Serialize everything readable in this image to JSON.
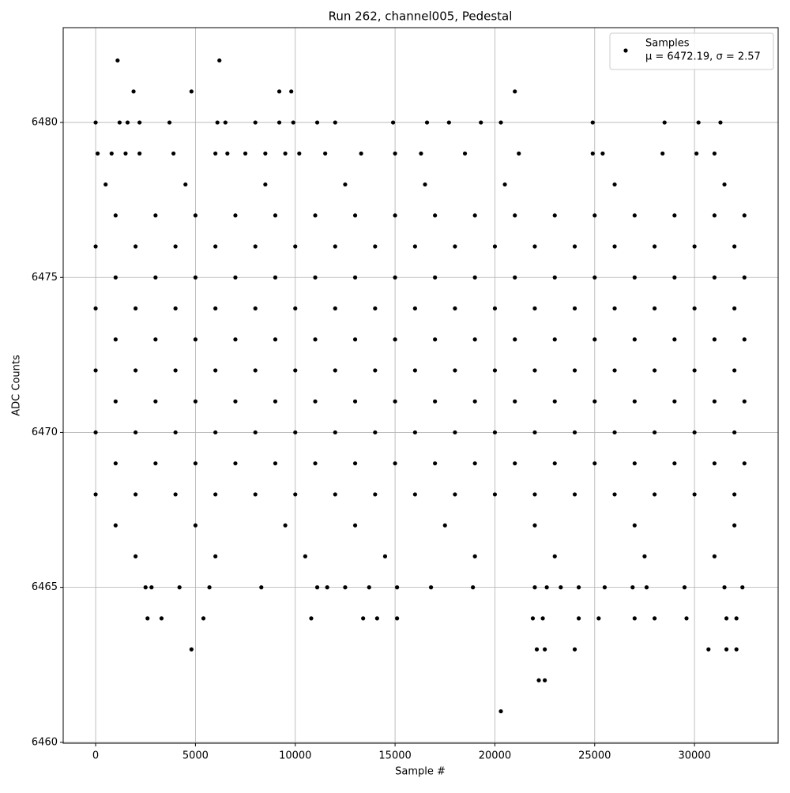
{
  "chart_data": {
    "type": "scatter",
    "title": "Run 262, channel005, Pedestal",
    "xlabel": "Sample #",
    "ylabel": "ADC Counts",
    "legend_stats": "μ = 6472.19, σ = 2.57",
    "x": [
      1100,
      6200,
      1900,
      4800,
      9200,
      9800,
      21000,
      0,
      1200,
      1600,
      2200,
      3700,
      6100,
      6500,
      8000,
      9200,
      9900,
      11100,
      12000,
      14900,
      16600,
      17700,
      19300,
      20300,
      24900,
      28500,
      30200,
      31300,
      100,
      800,
      1500,
      2200,
      3900,
      6000,
      6600,
      7500,
      8500,
      9500,
      10200,
      11500,
      13300,
      15000,
      16300,
      18500,
      21200,
      24900,
      25400,
      28400,
      31000,
      30100,
      500,
      4500,
      8500,
      12500,
      16500,
      20500,
      26000,
      31500,
      1000,
      3000,
      5000,
      7000,
      9000,
      11000,
      13000,
      15000,
      17000,
      19000,
      21000,
      23000,
      25000,
      27000,
      29000,
      31000,
      32500,
      0,
      2000,
      4000,
      6000,
      8000,
      10000,
      12000,
      14000,
      16000,
      18000,
      20000,
      22000,
      24000,
      26000,
      28000,
      30000,
      32000,
      1000,
      3000,
      5000,
      7000,
      9000,
      11000,
      13000,
      15000,
      17000,
      19000,
      21000,
      23000,
      25000,
      27000,
      29000,
      31000,
      32500,
      0,
      2000,
      4000,
      6000,
      8000,
      10000,
      12000,
      14000,
      16000,
      18000,
      20000,
      22000,
      24000,
      26000,
      28000,
      30000,
      32000,
      1000,
      3000,
      5000,
      7000,
      9000,
      11000,
      13000,
      15000,
      17000,
      19000,
      21000,
      23000,
      25000,
      27000,
      29000,
      31000,
      32500,
      0,
      2000,
      4000,
      6000,
      8000,
      10000,
      12000,
      14000,
      16000,
      18000,
      20000,
      22000,
      24000,
      26000,
      28000,
      30000,
      32000,
      1000,
      3000,
      5000,
      7000,
      9000,
      11000,
      13000,
      15000,
      17000,
      19000,
      21000,
      23000,
      25000,
      27000,
      29000,
      31000,
      32500,
      0,
      2000,
      4000,
      6000,
      8000,
      10000,
      12000,
      14000,
      16000,
      18000,
      20000,
      22000,
      24000,
      26000,
      28000,
      30000,
      32000,
      1000,
      3000,
      5000,
      7000,
      9000,
      11000,
      13000,
      15000,
      17000,
      19000,
      21000,
      23000,
      25000,
      27000,
      29000,
      31000,
      32500,
      0,
      2000,
      4000,
      6000,
      8000,
      10000,
      12000,
      14000,
      16000,
      18000,
      20000,
      22000,
      24000,
      26000,
      28000,
      30000,
      32000,
      1000,
      5000,
      9500,
      13000,
      17500,
      22000,
      27000,
      32000,
      2000,
      6000,
      10500,
      14500,
      19000,
      23000,
      27500,
      31000,
      2500,
      2800,
      4200,
      5700,
      8300,
      11100,
      11600,
      12500,
      13700,
      15100,
      16800,
      18900,
      22000,
      22600,
      23300,
      24200,
      25500,
      26900,
      27600,
      29500,
      31500,
      32400,
      2600,
      3300,
      5400,
      10800,
      13400,
      14100,
      15100,
      21900,
      22400,
      24200,
      25200,
      27000,
      28000,
      29600,
      31600,
      32100,
      4800,
      22100,
      22500,
      24000,
      30700,
      31600,
      32100,
      22200,
      22500,
      20300
    ],
    "series": [
      {
        "name": "Samples",
        "color": "#000000",
        "values": [
          6482,
          6482,
          6481,
          6481,
          6481,
          6481,
          6481,
          6480,
          6480,
          6480,
          6480,
          6480,
          6480,
          6480,
          6480,
          6480,
          6480,
          6480,
          6480,
          6480,
          6480,
          6480,
          6480,
          6480,
          6480,
          6480,
          6480,
          6480,
          6479,
          6479,
          6479,
          6479,
          6479,
          6479,
          6479,
          6479,
          6479,
          6479,
          6479,
          6479,
          6479,
          6479,
          6479,
          6479,
          6479,
          6479,
          6479,
          6479,
          6479,
          6479,
          6478,
          6478,
          6478,
          6478,
          6478,
          6478,
          6478,
          6478,
          6477,
          6477,
          6477,
          6477,
          6477,
          6477,
          6477,
          6477,
          6477,
          6477,
          6477,
          6477,
          6477,
          6477,
          6477,
          6477,
          6477,
          6476,
          6476,
          6476,
          6476,
          6476,
          6476,
          6476,
          6476,
          6476,
          6476,
          6476,
          6476,
          6476,
          6476,
          6476,
          6476,
          6476,
          6475,
          6475,
          6475,
          6475,
          6475,
          6475,
          6475,
          6475,
          6475,
          6475,
          6475,
          6475,
          6475,
          6475,
          6475,
          6475,
          6475,
          6474,
          6474,
          6474,
          6474,
          6474,
          6474,
          6474,
          6474,
          6474,
          6474,
          6474,
          6474,
          6474,
          6474,
          6474,
          6474,
          6474,
          6473,
          6473,
          6473,
          6473,
          6473,
          6473,
          6473,
          6473,
          6473,
          6473,
          6473,
          6473,
          6473,
          6473,
          6473,
          6473,
          6473,
          6472,
          6472,
          6472,
          6472,
          6472,
          6472,
          6472,
          6472,
          6472,
          6472,
          6472,
          6472,
          6472,
          6472,
          6472,
          6472,
          6472,
          6471,
          6471,
          6471,
          6471,
          6471,
          6471,
          6471,
          6471,
          6471,
          6471,
          6471,
          6471,
          6471,
          6471,
          6471,
          6471,
          6471,
          6470,
          6470,
          6470,
          6470,
          6470,
          6470,
          6470,
          6470,
          6470,
          6470,
          6470,
          6470,
          6470,
          6470,
          6470,
          6470,
          6470,
          6469,
          6469,
          6469,
          6469,
          6469,
          6469,
          6469,
          6469,
          6469,
          6469,
          6469,
          6469,
          6469,
          6469,
          6469,
          6469,
          6469,
          6468,
          6468,
          6468,
          6468,
          6468,
          6468,
          6468,
          6468,
          6468,
          6468,
          6468,
          6468,
          6468,
          6468,
          6468,
          6468,
          6468,
          6467,
          6467,
          6467,
          6467,
          6467,
          6467,
          6467,
          6467,
          6466,
          6466,
          6466,
          6466,
          6466,
          6466,
          6466,
          6466,
          6465,
          6465,
          6465,
          6465,
          6465,
          6465,
          6465,
          6465,
          6465,
          6465,
          6465,
          6465,
          6465,
          6465,
          6465,
          6465,
          6465,
          6465,
          6465,
          6465,
          6465,
          6465,
          6464,
          6464,
          6464,
          6464,
          6464,
          6464,
          6464,
          6464,
          6464,
          6464,
          6464,
          6464,
          6464,
          6464,
          6464,
          6464,
          6463,
          6463,
          6463,
          6463,
          6463,
          6463,
          6463,
          6462,
          6462,
          6461
        ]
      }
    ],
    "xlim": [
      -1625,
      34190
    ],
    "xticks": [
      0,
      5000,
      10000,
      15000,
      20000,
      25000,
      30000
    ],
    "ylim": [
      6459.97,
      6483.06
    ],
    "yticks": [
      6460,
      6465,
      6470,
      6475,
      6480
    ],
    "grid": true,
    "legend": "upper right"
  }
}
